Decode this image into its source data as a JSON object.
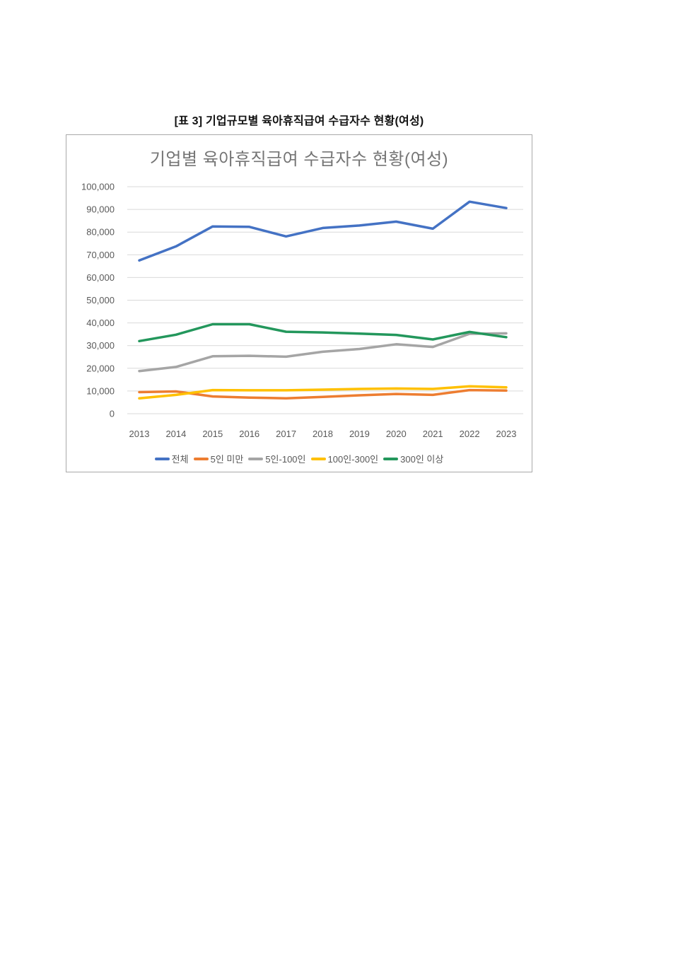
{
  "page": {
    "heading": "[표 3] 기업규모별 육아휴직급여 수급자수 현황(여성)"
  },
  "chart": {
    "title": "기업별 육아휴직급여 수급자수 현황(여성)"
  },
  "chart_data": {
    "type": "line",
    "title": "기업별 육아휴직급여 수급자수 현황(여성)",
    "categories": [
      "2013",
      "2014",
      "2015",
      "2016",
      "2017",
      "2018",
      "2019",
      "2020",
      "2021",
      "2022",
      "2023"
    ],
    "series": [
      {
        "name": "전체",
        "color": "#4472C4",
        "values": [
          67500,
          73700,
          82500,
          82300,
          78100,
          81800,
          82900,
          84600,
          81500,
          93400,
          90600
        ]
      },
      {
        "name": "5인 미만",
        "color": "#ED7D31",
        "values": [
          9500,
          9800,
          7600,
          7100,
          6800,
          7400,
          8100,
          8700,
          8300,
          10400,
          10200
        ]
      },
      {
        "name": "5인-100인",
        "color": "#A5A5A5",
        "values": [
          18800,
          20600,
          25300,
          25500,
          25100,
          27300,
          28500,
          30600,
          29400,
          35200,
          35400
        ]
      },
      {
        "name": "100인-300인",
        "color": "#FFC000",
        "values": [
          6800,
          8300,
          10400,
          10300,
          10300,
          10600,
          10900,
          11100,
          10900,
          12100,
          11600
        ]
      },
      {
        "name": "300인 이상",
        "color": "#23975C",
        "values": [
          32000,
          34800,
          39400,
          39400,
          36100,
          35800,
          35300,
          34700,
          32700,
          36000,
          33700
        ]
      }
    ],
    "ylim": [
      0,
      100000
    ],
    "y_tick_step": 10000,
    "y_ticks": [
      "100,000",
      "90,000",
      "80,000",
      "70,000",
      "60,000",
      "50,000",
      "40,000",
      "30,000",
      "20,000",
      "10,000",
      "0"
    ],
    "xlabel": "",
    "ylabel": "",
    "grid": "horizontal",
    "legend_position": "bottom"
  }
}
